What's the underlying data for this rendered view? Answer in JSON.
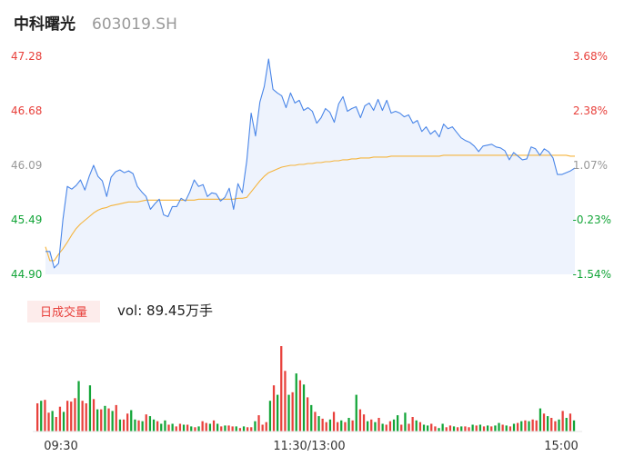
{
  "header": {
    "name": "中科曙光",
    "code": "603019.SH"
  },
  "colors": {
    "up": "#e8413c",
    "down": "#13a538",
    "neutral": "#999999",
    "price_line": "#4a86e8",
    "avg_line": "#f5b43d",
    "area_fill": "#eef3fd",
    "volume_badge_bg": "#fdeceb"
  },
  "volume_panel": {
    "badge": "日成交量",
    "vol_text": "vol: 89.45万手"
  },
  "chart_data": [
    {
      "type": "line",
      "title": "",
      "y_ticks_left": [
        "47.28",
        "46.68",
        "46.09",
        "45.49",
        "44.90"
      ],
      "y_ticks_right": [
        "3.68%",
        "2.38%",
        "1.07%",
        "-0.23%",
        "-1.54%"
      ],
      "x_ticks": [
        "09:30",
        "11:30/13:00",
        "15:00"
      ],
      "ylim": [
        44.9,
        47.28
      ],
      "prev_close": 45.6,
      "series": [
        {
          "key": "price",
          "values": [
            45.15,
            45.15,
            44.97,
            45.02,
            45.5,
            45.86,
            45.83,
            45.87,
            45.93,
            45.82,
            45.97,
            46.09,
            45.97,
            45.92,
            45.75,
            45.96,
            46.02,
            46.04,
            46.01,
            46.03,
            46.0,
            45.86,
            45.8,
            45.75,
            45.61,
            45.67,
            45.72,
            45.55,
            45.53,
            45.64,
            45.64,
            45.73,
            45.7,
            45.8,
            45.93,
            45.86,
            45.88,
            45.75,
            45.79,
            45.78,
            45.7,
            45.74,
            45.84,
            45.61,
            45.89,
            45.79,
            46.14,
            46.66,
            46.41,
            46.78,
            46.95,
            47.25,
            46.92,
            46.88,
            46.85,
            46.72,
            46.88,
            46.77,
            46.8,
            46.69,
            46.72,
            46.68,
            46.55,
            46.61,
            46.71,
            46.67,
            46.56,
            46.76,
            46.84,
            46.68,
            46.71,
            46.73,
            46.61,
            46.74,
            46.77,
            46.69,
            46.81,
            46.69,
            46.8,
            46.66,
            46.68,
            46.66,
            46.62,
            46.64,
            46.55,
            46.58,
            46.46,
            46.51,
            46.43,
            46.47,
            46.4,
            46.54,
            46.49,
            46.51,
            46.45,
            46.39,
            46.36,
            46.34,
            46.3,
            46.24,
            46.3,
            46.31,
            46.32,
            46.29,
            46.28,
            46.25,
            46.15,
            46.23,
            46.19,
            46.15,
            46.16,
            46.29,
            46.27,
            46.2,
            46.27,
            46.24,
            46.17,
            45.99,
            45.99,
            46.01,
            46.03,
            46.06
          ],
          "color": "#4a86e8"
        },
        {
          "key": "avg",
          "values": [
            45.2,
            45.05,
            45.05,
            45.12,
            45.18,
            45.25,
            45.33,
            45.4,
            45.45,
            45.49,
            45.53,
            45.57,
            45.6,
            45.62,
            45.63,
            45.65,
            45.66,
            45.67,
            45.68,
            45.69,
            45.69,
            45.69,
            45.7,
            45.71,
            45.71,
            45.71,
            45.71,
            45.71,
            45.71,
            45.71,
            45.71,
            45.71,
            45.71,
            45.71,
            45.71,
            45.72,
            45.72,
            45.72,
            45.72,
            45.72,
            45.72,
            45.72,
            45.72,
            45.72,
            45.73,
            45.73,
            45.74,
            45.8,
            45.86,
            45.92,
            45.97,
            46.01,
            46.03,
            46.05,
            46.07,
            46.08,
            46.09,
            46.09,
            46.1,
            46.1,
            46.11,
            46.11,
            46.12,
            46.12,
            46.13,
            46.13,
            46.14,
            46.14,
            46.15,
            46.15,
            46.16,
            46.16,
            46.17,
            46.17,
            46.17,
            46.18,
            46.18,
            46.18,
            46.18,
            46.19,
            46.19,
            46.19,
            46.19,
            46.19,
            46.19,
            46.19,
            46.19,
            46.19,
            46.19,
            46.19,
            46.19,
            46.2,
            46.2,
            46.2,
            46.2,
            46.2,
            46.2,
            46.2,
            46.2,
            46.2,
            46.2,
            46.2,
            46.2,
            46.2,
            46.2,
            46.2,
            46.2,
            46.2,
            46.2,
            46.2,
            46.2,
            46.2,
            46.2,
            46.2,
            46.2,
            46.2,
            46.2,
            46.2,
            46.2,
            46.2,
            46.19,
            46.19
          ],
          "color": "#f5b43d"
        }
      ]
    },
    {
      "type": "bar",
      "title": "日成交量",
      "values": [
        0.33,
        0.36,
        0.37,
        0.22,
        0.24,
        0.17,
        0.29,
        0.23,
        0.36,
        0.35,
        0.39,
        0.59,
        0.36,
        0.33,
        0.54,
        0.38,
        0.26,
        0.26,
        0.3,
        0.27,
        0.24,
        0.31,
        0.14,
        0.14,
        0.21,
        0.25,
        0.14,
        0.13,
        0.12,
        0.2,
        0.18,
        0.14,
        0.12,
        0.09,
        0.13,
        0.08,
        0.09,
        0.06,
        0.09,
        0.08,
        0.08,
        0.06,
        0.05,
        0.06,
        0.12,
        0.1,
        0.09,
        0.13,
        0.09,
        0.06,
        0.07,
        0.07,
        0.06,
        0.06,
        0.04,
        0.06,
        0.05,
        0.05,
        0.12,
        0.19,
        0.08,
        0.11,
        0.36,
        0.54,
        0.43,
        1.0,
        0.71,
        0.43,
        0.46,
        0.68,
        0.6,
        0.55,
        0.4,
        0.31,
        0.23,
        0.18,
        0.15,
        0.11,
        0.14,
        0.23,
        0.11,
        0.13,
        0.11,
        0.16,
        0.13,
        0.43,
        0.26,
        0.2,
        0.12,
        0.14,
        0.11,
        0.16,
        0.09,
        0.08,
        0.12,
        0.14,
        0.19,
        0.08,
        0.22,
        0.09,
        0.17,
        0.13,
        0.11,
        0.08,
        0.07,
        0.09,
        0.06,
        0.04,
        0.09,
        0.05,
        0.07,
        0.06,
        0.05,
        0.06,
        0.06,
        0.05,
        0.08,
        0.07,
        0.08,
        0.06,
        0.07,
        0.06,
        0.07,
        0.1,
        0.08,
        0.07,
        0.06,
        0.09,
        0.1,
        0.12,
        0.13,
        0.12,
        0.14,
        0.13,
        0.27,
        0.21,
        0.18,
        0.16,
        0.12,
        0.14,
        0.24,
        0.16,
        0.21,
        0.13
      ],
      "directions": [
        "u",
        "d",
        "u",
        "u",
        "d",
        "u",
        "u",
        "d",
        "u",
        "u",
        "u",
        "d",
        "u",
        "u",
        "d",
        "u",
        "d",
        "u",
        "d",
        "u",
        "d",
        "u",
        "d",
        "u",
        "u",
        "d",
        "d",
        "u",
        "d",
        "u",
        "d",
        "d",
        "u",
        "d",
        "d",
        "u",
        "d",
        "u",
        "u",
        "d",
        "u",
        "d",
        "u",
        "d",
        "u",
        "u",
        "d",
        "u",
        "d",
        "u",
        "d",
        "u",
        "u",
        "d",
        "u",
        "d",
        "u",
        "u",
        "d",
        "u",
        "u",
        "u",
        "d",
        "u",
        "d",
        "u",
        "u",
        "d",
        "u",
        "d",
        "u",
        "d",
        "u",
        "d",
        "u",
        "d",
        "u",
        "u",
        "d",
        "u",
        "u",
        "d",
        "u",
        "d",
        "u",
        "d",
        "u",
        "u",
        "d",
        "u",
        "d",
        "u",
        "d",
        "u",
        "u",
        "d",
        "d",
        "u",
        "d",
        "u",
        "u",
        "d",
        "u",
        "d",
        "d",
        "u",
        "u",
        "d",
        "d",
        "u",
        "u",
        "d",
        "u",
        "d",
        "u",
        "u",
        "d",
        "u",
        "d",
        "u",
        "d",
        "u",
        "d",
        "d",
        "u",
        "d",
        "u",
        "d",
        "u",
        "d",
        "u",
        "d",
        "u",
        "u",
        "d",
        "u",
        "d",
        "u",
        "u",
        "d",
        "u",
        "d",
        "u",
        "d"
      ]
    }
  ]
}
